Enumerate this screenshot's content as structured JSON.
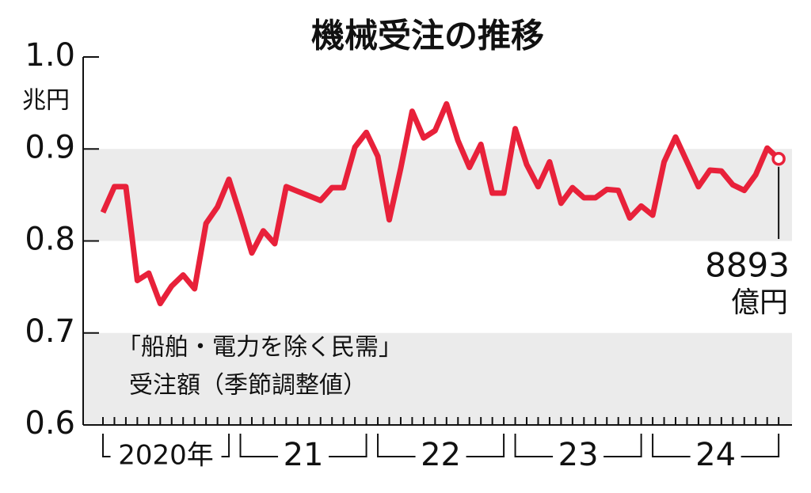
{
  "chart_data": {
    "type": "line",
    "title": "機械受注の推移",
    "y_unit": "兆円",
    "annotation": [
      "「船舶・電力を除く民需」",
      "受注額（季節調整値）"
    ],
    "categories": [
      "2020年",
      null,
      null,
      null,
      null,
      null,
      null,
      null,
      null,
      null,
      null,
      null,
      "21",
      null,
      null,
      null,
      null,
      null,
      null,
      null,
      null,
      null,
      null,
      null,
      "22",
      null,
      null,
      null,
      null,
      null,
      null,
      null,
      null,
      null,
      null,
      null,
      "23",
      null,
      null,
      null,
      null,
      null,
      null,
      null,
      null,
      null,
      null,
      null,
      "24",
      null,
      null,
      null,
      null,
      null,
      null,
      null,
      null,
      null,
      null,
      null
    ],
    "series": [
      {
        "color": "#e8213a",
        "values": [
          0.831,
          0.859,
          0.859,
          0.757,
          0.765,
          0.732,
          0.751,
          0.763,
          0.748,
          0.819,
          0.837,
          0.867,
          0.828,
          0.787,
          0.811,
          0.797,
          0.859,
          0.854,
          0.849,
          0.844,
          0.858,
          0.858,
          0.902,
          0.918,
          0.892,
          0.823,
          0.879,
          0.941,
          0.912,
          0.92,
          0.949,
          0.909,
          0.88,
          0.905,
          0.852,
          0.852,
          0.922,
          0.883,
          0.859,
          0.886,
          0.841,
          0.858,
          0.847,
          0.847,
          0.856,
          0.855,
          0.825,
          0.838,
          0.828,
          0.886,
          0.913,
          0.886,
          0.859,
          0.877,
          0.876,
          0.861,
          0.855,
          0.872,
          0.901,
          0.8893
        ],
        "value_labels": [
          null,
          null,
          null,
          null,
          null,
          null,
          null,
          null,
          null,
          null,
          null,
          null,
          null,
          null,
          null,
          null,
          null,
          null,
          null,
          null,
          null,
          null,
          null,
          null,
          null,
          null,
          null,
          null,
          null,
          null,
          null,
          null,
          null,
          null,
          null,
          null,
          null,
          null,
          null,
          null,
          null,
          null,
          null,
          null,
          null,
          null,
          null,
          null,
          null,
          null,
          null,
          null,
          null,
          null,
          null,
          null,
          null,
          null,
          null,
          "8893"
        ],
        "value_label_unit": "億円"
      }
    ],
    "ylim": [
      0.6,
      1.0
    ],
    "yticks": [
      0.6,
      0.7,
      0.8,
      0.9,
      {
        "value": 1.0,
        "label": "1.0"
      }
    ],
    "banded": true
  }
}
